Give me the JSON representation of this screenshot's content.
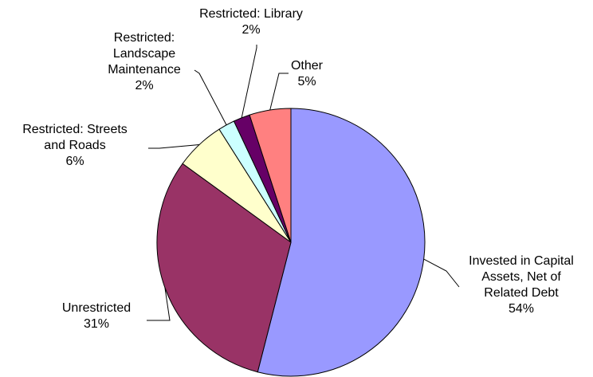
{
  "chart_data": {
    "type": "pie",
    "title": "",
    "start_angle_deg": 0,
    "direction": "clockwise",
    "slices": [
      {
        "label": "Invested in Capital Assets, Net of Related Debt",
        "lines": [
          "Invested in Capital",
          "Assets, Net of",
          "Related Debt"
        ],
        "value": 54,
        "value_label": "54%",
        "color": "#9999ff"
      },
      {
        "label": "Unrestricted",
        "lines": [
          "Unrestricted"
        ],
        "value": 31,
        "value_label": "31%",
        "color": "#993366"
      },
      {
        "label": "Restricted: Streets and Roads",
        "lines": [
          "Restricted: Streets",
          "and Roads"
        ],
        "value": 6,
        "value_label": "6%",
        "color": "#ffffcc"
      },
      {
        "label": "Restricted: Landscape Maintenance",
        "lines": [
          "Restricted:",
          "Landscape",
          "Maintenance"
        ],
        "value": 2,
        "value_label": "2%",
        "color": "#ccffff"
      },
      {
        "label": "Restricted: Library",
        "lines": [
          "Restricted: Library"
        ],
        "value": 2,
        "value_label": "2%",
        "color": "#660066"
      },
      {
        "label": "Other",
        "lines": [
          "Other"
        ],
        "value": 5,
        "value_label": "5%",
        "color": "#ff8080"
      }
    ]
  }
}
